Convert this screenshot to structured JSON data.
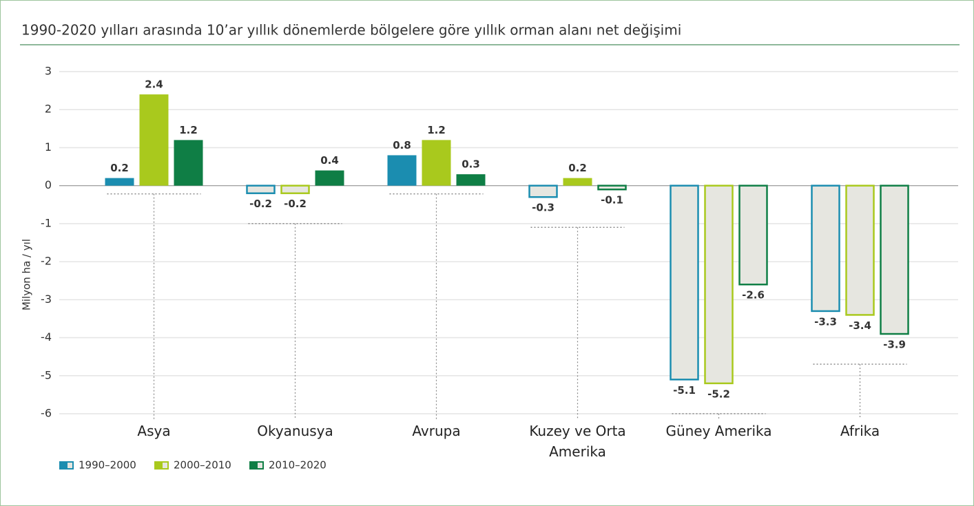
{
  "chart_data": {
    "type": "bar",
    "title": "1990-2020 yılları arasında 10’ar yıllık dönemlerde bölgelere göre yıllık orman alanı net değişimi",
    "y_label": "Milyon ha / yıl",
    "categories": [
      "Asya",
      "Okyanusya",
      "Avrupa",
      "Kuzey ve Orta Amerika",
      "Güney Amerika",
      "Afrika"
    ],
    "series": [
      {
        "name": "1990–2000",
        "color": "#1b8db0",
        "values": [
          0.2,
          -0.2,
          0.8,
          -0.3,
          -5.1,
          -3.3
        ]
      },
      {
        "name": "2000–2010",
        "color": "#a9c91d",
        "values": [
          2.4,
          -0.2,
          1.2,
          0.2,
          -5.2,
          -3.4
        ]
      },
      {
        "name": "2010–2020",
        "color": "#0f7e45",
        "values": [
          1.2,
          0.4,
          0.3,
          -0.1,
          -2.6,
          -3.9
        ]
      }
    ],
    "ylim": [
      -6,
      3
    ],
    "yticks": [
      -6,
      -5,
      -4,
      -3,
      -2,
      -1,
      0,
      1,
      2,
      3
    ],
    "grid": true,
    "negative_fill": "#e6e6e0"
  }
}
